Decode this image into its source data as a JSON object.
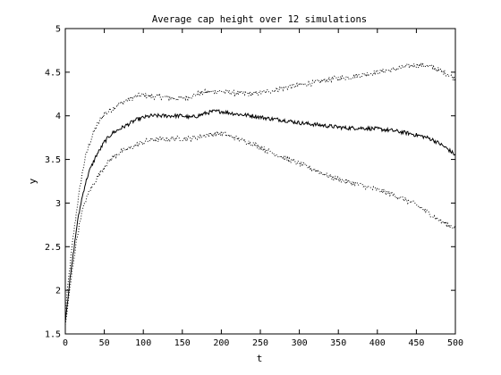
{
  "chart_data": {
    "type": "line",
    "title": "Average cap height over 12 simulations",
    "xlabel": "t",
    "ylabel": "y",
    "xlim": [
      0,
      500
    ],
    "ylim": [
      1.5,
      5
    ],
    "grid": false,
    "xticks": [
      0,
      50,
      100,
      150,
      200,
      250,
      300,
      350,
      400,
      450,
      500
    ],
    "xtick_labels": [
      "0",
      "50",
      "100",
      "150",
      "200",
      "250",
      "300",
      "350",
      "400",
      "450",
      "500"
    ],
    "yticks": [
      1.5,
      2,
      2.5,
      3,
      3.5,
      4,
      4.5,
      5
    ],
    "ytick_labels": [
      "1.5",
      "2",
      "2.5",
      "3",
      "3.5",
      "4",
      "4.5",
      "5"
    ],
    "series": [
      {
        "style": "dotted",
        "color": "#000000",
        "x": [
          0,
          5,
          10,
          15,
          20,
          25,
          30,
          35,
          40,
          45,
          50,
          55,
          60,
          70,
          80,
          90,
          100,
          110,
          120,
          130,
          140,
          150,
          160,
          170,
          180,
          190,
          200,
          220,
          240,
          260,
          280,
          300,
          320,
          340,
          360,
          380,
          400,
          420,
          440,
          450,
          460,
          470,
          480,
          490,
          500
        ],
        "y": [
          1.75,
          2.2,
          2.6,
          2.95,
          3.25,
          3.5,
          3.65,
          3.78,
          3.88,
          3.96,
          4.02,
          4.05,
          4.08,
          4.14,
          4.18,
          4.22,
          4.24,
          4.22,
          4.22,
          4.21,
          4.2,
          4.2,
          4.22,
          4.25,
          4.27,
          4.28,
          4.28,
          4.26,
          4.25,
          4.28,
          4.32,
          4.35,
          4.38,
          4.42,
          4.44,
          4.47,
          4.5,
          4.53,
          4.57,
          4.58,
          4.58,
          4.56,
          4.52,
          4.48,
          4.42
        ]
      },
      {
        "style": "solid",
        "color": "#000000",
        "x": [
          0,
          5,
          10,
          15,
          20,
          25,
          30,
          35,
          40,
          45,
          50,
          55,
          60,
          70,
          80,
          90,
          100,
          110,
          120,
          130,
          140,
          150,
          160,
          170,
          180,
          190,
          200,
          220,
          240,
          260,
          280,
          300,
          320,
          340,
          360,
          380,
          400,
          420,
          440,
          450,
          460,
          470,
          480,
          490,
          500
        ],
        "y": [
          1.65,
          2.05,
          2.4,
          2.75,
          3.0,
          3.2,
          3.35,
          3.45,
          3.55,
          3.62,
          3.7,
          3.75,
          3.8,
          3.85,
          3.9,
          3.95,
          3.98,
          4.0,
          4.0,
          4.0,
          4.0,
          4.0,
          3.98,
          4.0,
          4.03,
          4.05,
          4.05,
          4.02,
          4.0,
          3.97,
          3.95,
          3.92,
          3.9,
          3.88,
          3.86,
          3.86,
          3.85,
          3.83,
          3.8,
          3.78,
          3.76,
          3.73,
          3.68,
          3.62,
          3.55
        ]
      },
      {
        "style": "dotted",
        "color": "#000000",
        "x": [
          0,
          5,
          10,
          15,
          20,
          25,
          30,
          35,
          40,
          45,
          50,
          55,
          60,
          70,
          80,
          90,
          100,
          110,
          120,
          130,
          140,
          150,
          160,
          170,
          180,
          190,
          200,
          220,
          240,
          260,
          280,
          300,
          320,
          340,
          360,
          380,
          400,
          420,
          440,
          450,
          460,
          470,
          480,
          490,
          500
        ],
        "y": [
          1.6,
          1.95,
          2.3,
          2.6,
          2.85,
          3.0,
          3.12,
          3.2,
          3.28,
          3.35,
          3.42,
          3.47,
          3.52,
          3.58,
          3.62,
          3.66,
          3.7,
          3.72,
          3.73,
          3.73,
          3.74,
          3.74,
          3.74,
          3.76,
          3.78,
          3.79,
          3.8,
          3.74,
          3.68,
          3.6,
          3.52,
          3.45,
          3.38,
          3.3,
          3.25,
          3.2,
          3.15,
          3.1,
          3.02,
          2.98,
          2.92,
          2.86,
          2.8,
          2.75,
          2.72
        ]
      }
    ]
  }
}
